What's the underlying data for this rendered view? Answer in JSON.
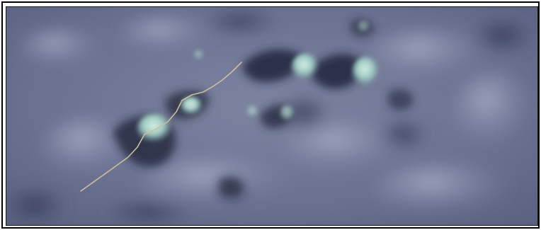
{
  "view": {
    "type": "terrain-render",
    "colors": {
      "frame": "#000000",
      "terrain_base": "#6b7290",
      "terrain_light": "#8a93ae",
      "terrain_shadow": "#2b2f45",
      "peak_highlight": "#bfe3d8",
      "path_line": "#cdbf9a"
    }
  },
  "overlay": {
    "path": {
      "name": "measurement-path"
    }
  }
}
